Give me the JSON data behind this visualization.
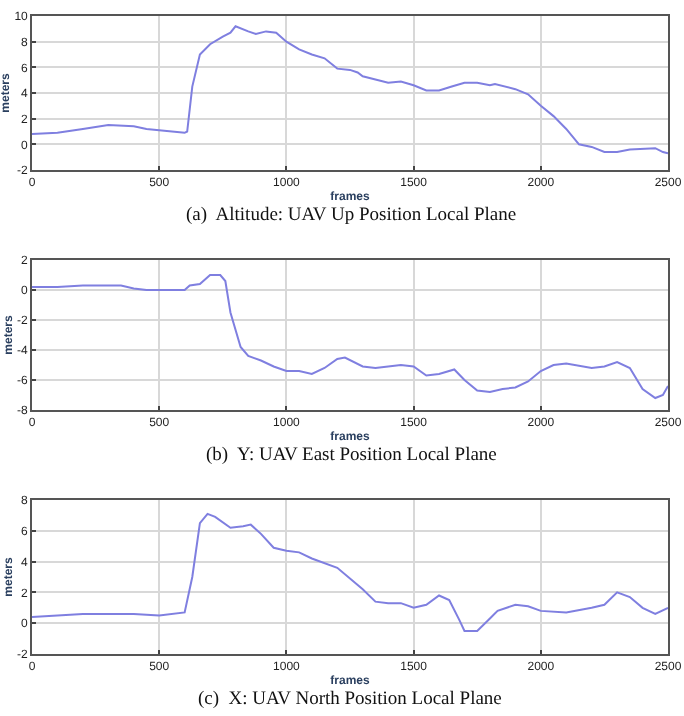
{
  "chart_data": [
    {
      "type": "line",
      "title": "(a)  Altitude: UAV Up Position Local Plane",
      "xlabel": "frames",
      "ylabel": "meters",
      "xlim": [
        0,
        2500
      ],
      "xticks": [
        0,
        500,
        1000,
        1500,
        2000,
        2500
      ],
      "ylim": [
        -2,
        10
      ],
      "yticks": [
        -2,
        0,
        2,
        4,
        6,
        8,
        10
      ],
      "grid": true,
      "marker": "none",
      "line_style": "solid",
      "x": [
        0,
        100,
        200,
        300,
        400,
        450,
        500,
        600,
        610,
        630,
        660,
        700,
        750,
        780,
        800,
        850,
        880,
        920,
        960,
        1000,
        1050,
        1100,
        1150,
        1200,
        1250,
        1280,
        1300,
        1400,
        1450,
        1500,
        1550,
        1600,
        1650,
        1700,
        1750,
        1800,
        1820,
        1900,
        1950,
        2000,
        2050,
        2100,
        2150,
        2200,
        2250,
        2300,
        2350,
        2450,
        2480,
        2500
      ],
      "series": [
        {
          "color": "#7f7fe0",
          "values": [
            0.8,
            0.9,
            1.2,
            1.5,
            1.4,
            1.2,
            1.1,
            0.9,
            1.0,
            4.5,
            7.0,
            7.8,
            8.4,
            8.7,
            9.2,
            8.8,
            8.6,
            8.8,
            8.7,
            8.0,
            7.4,
            7.0,
            6.7,
            5.9,
            5.8,
            5.6,
            5.3,
            4.8,
            4.9,
            4.6,
            4.2,
            4.2,
            4.5,
            4.8,
            4.8,
            4.6,
            4.7,
            4.3,
            3.9,
            3.0,
            2.2,
            1.2,
            0.0,
            -0.2,
            -0.6,
            -0.6,
            -0.4,
            -0.3,
            -0.6,
            -0.7
          ]
        }
      ]
    },
    {
      "type": "line",
      "title": "(b)  Y: UAV East Position Local Plane",
      "xlabel": "frames",
      "ylabel": "meters",
      "xlim": [
        0,
        2500
      ],
      "xticks": [
        0,
        500,
        1000,
        1500,
        2000,
        2500
      ],
      "ylim": [
        -8,
        2
      ],
      "yticks": [
        -8,
        -6,
        -4,
        -2,
        0,
        2
      ],
      "grid": true,
      "marker": "none",
      "line_style": "solid",
      "x": [
        0,
        100,
        200,
        350,
        400,
        450,
        600,
        620,
        660,
        700,
        740,
        760,
        780,
        820,
        850,
        900,
        950,
        1000,
        1050,
        1100,
        1150,
        1200,
        1230,
        1300,
        1350,
        1400,
        1450,
        1500,
        1550,
        1600,
        1660,
        1700,
        1750,
        1800,
        1850,
        1900,
        1950,
        2000,
        2050,
        2100,
        2200,
        2250,
        2300,
        2350,
        2400,
        2450,
        2480,
        2500
      ],
      "series": [
        {
          "color": "#7f7fe0",
          "values": [
            0.2,
            0.2,
            0.3,
            0.3,
            0.1,
            0.0,
            0.0,
            0.3,
            0.4,
            1.0,
            1.0,
            0.6,
            -1.5,
            -3.8,
            -4.4,
            -4.7,
            -5.1,
            -5.4,
            -5.4,
            -5.6,
            -5.2,
            -4.6,
            -4.5,
            -5.1,
            -5.2,
            -5.1,
            -5.0,
            -5.1,
            -5.7,
            -5.6,
            -5.3,
            -6.0,
            -6.7,
            -6.8,
            -6.6,
            -6.5,
            -6.1,
            -5.4,
            -5.0,
            -4.9,
            -5.2,
            -5.1,
            -4.8,
            -5.2,
            -6.6,
            -7.2,
            -7.0,
            -6.4
          ]
        }
      ]
    },
    {
      "type": "line",
      "title": "(c)  X: UAV North Position Local Plane",
      "xlabel": "frames",
      "ylabel": "meters",
      "xlim": [
        0,
        2500
      ],
      "xticks": [
        0,
        500,
        1000,
        1500,
        2000,
        2500
      ],
      "ylim": [
        -2,
        8
      ],
      "yticks": [
        -2,
        0,
        2,
        4,
        6,
        8
      ],
      "grid": true,
      "marker": "none",
      "line_style": "solid",
      "x": [
        0,
        200,
        400,
        500,
        600,
        630,
        660,
        690,
        720,
        780,
        830,
        860,
        900,
        950,
        1000,
        1050,
        1100,
        1200,
        1300,
        1350,
        1400,
        1450,
        1500,
        1550,
        1600,
        1640,
        1680,
        1700,
        1750,
        1800,
        1830,
        1900,
        1950,
        2000,
        2100,
        2200,
        2250,
        2300,
        2350,
        2400,
        2450,
        2500
      ],
      "series": [
        {
          "color": "#7f7fe0",
          "values": [
            0.4,
            0.6,
            0.6,
            0.5,
            0.7,
            3.0,
            6.5,
            7.1,
            6.9,
            6.2,
            6.3,
            6.4,
            5.8,
            4.9,
            4.7,
            4.6,
            4.2,
            3.6,
            2.2,
            1.4,
            1.3,
            1.3,
            1.0,
            1.2,
            1.8,
            1.5,
            0.2,
            -0.5,
            -0.5,
            0.3,
            0.8,
            1.2,
            1.1,
            0.8,
            0.7,
            1.0,
            1.2,
            2.0,
            1.7,
            1.0,
            0.6,
            1.0
          ]
        }
      ]
    }
  ]
}
